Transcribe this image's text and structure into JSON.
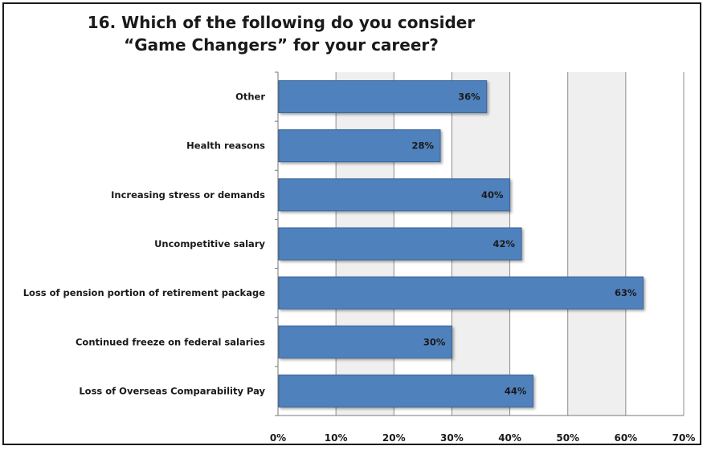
{
  "title_line1": "16. Which of the following do you consider",
  "title_line2": "“Game Changers” for your career?",
  "colors": {
    "bar": "#4f81bd",
    "bar_edge": "#3a6597",
    "plot_bg": "#efefef",
    "grid": "#8c8c8c"
  },
  "chart_data": {
    "type": "bar",
    "orientation": "horizontal",
    "categories": [
      "Other",
      "Health reasons",
      "Increasing stress or demands",
      "Uncompetitive salary",
      "Loss of pension portion of retirement package",
      "Continued freeze on federal salaries",
      "Loss of Overseas Comparability Pay"
    ],
    "values": [
      36,
      28,
      40,
      42,
      63,
      30,
      44
    ],
    "data_labels": [
      "36%",
      "28%",
      "40%",
      "42%",
      "63%",
      "30%",
      "44%"
    ],
    "xlim": [
      0,
      70
    ],
    "ticks": [
      0,
      10,
      20,
      30,
      40,
      50,
      60,
      70
    ],
    "tick_labels": [
      "0%",
      "10%",
      "20%",
      "30%",
      "40%",
      "50%",
      "60%",
      "70%"
    ],
    "grid": true,
    "legend": "none"
  }
}
